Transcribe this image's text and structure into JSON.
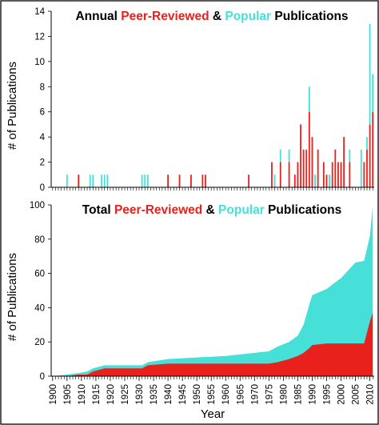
{
  "colors": {
    "peer": "#e8211d",
    "popular": "#46e0d8",
    "axis": "#000000"
  },
  "chart_data": [
    {
      "type": "bar",
      "title_parts": [
        "Annual ",
        "Peer-Reviewed",
        " & ",
        "Popular",
        " Publications"
      ],
      "title_colors": [
        "#000000",
        "#e8211d",
        "#000000",
        "#46e0d8",
        "#000000"
      ],
      "ylabel": "# of Publications",
      "ylim": [
        0,
        14
      ],
      "yticks": [
        "0",
        "2",
        "4",
        "6",
        "8",
        "10",
        "12",
        "14"
      ],
      "xlim": [
        1900,
        2011
      ],
      "stacked": true,
      "series": [
        {
          "name": "Peer-Reviewed",
          "x": [
            1909,
            1940,
            1944,
            1948,
            1952,
            1953,
            1968,
            1976,
            1979,
            1982,
            1984,
            1985,
            1986,
            1987,
            1988,
            1989,
            1990,
            1992,
            1994,
            1995,
            1997,
            1998,
            1999,
            2000,
            2001,
            2003,
            2008,
            2009,
            2010,
            2011
          ],
          "values": [
            1,
            1,
            1,
            1,
            1,
            1,
            1,
            2,
            2,
            2,
            1,
            2,
            5,
            3,
            3,
            6,
            4,
            3,
            2,
            1,
            2,
            3,
            2,
            2,
            4,
            2,
            2,
            3,
            5,
            6
          ]
        },
        {
          "name": "Popular",
          "x": [
            1905,
            1913,
            1914,
            1917,
            1918,
            1919,
            1931,
            1932,
            1933,
            1977,
            1979,
            1982,
            1989,
            1991,
            1996,
            2003,
            2007,
            2009,
            2010,
            2011
          ],
          "values": [
            1,
            1,
            1,
            1,
            1,
            1,
            1,
            1,
            1,
            1,
            1,
            1,
            2,
            1,
            1,
            1,
            3,
            1,
            8,
            3
          ]
        }
      ]
    },
    {
      "type": "area",
      "title_parts": [
        "Total ",
        "Peer-Reviewed",
        " & ",
        "Popular",
        " Publications"
      ],
      "title_colors": [
        "#000000",
        "#e8211d",
        "#000000",
        "#46e0d8",
        "#000000"
      ],
      "xlabel": "Year",
      "ylabel": "# of Publications",
      "ylim": [
        0,
        110
      ],
      "yticks": [
        "0",
        "20",
        "40",
        "60",
        "80",
        "100"
      ],
      "xlim": [
        1900,
        2011
      ],
      "xticks": [
        "1900",
        "1905",
        "1910",
        "1915",
        "1920",
        "1925",
        "1930",
        "1935",
        "1940",
        "1945",
        "1950",
        "1955",
        "1960",
        "1965",
        "1970",
        "1975",
        "1980",
        "1985",
        "1990",
        "1995",
        "2000",
        "2005",
        "2010"
      ],
      "stacked": true,
      "series": [
        {
          "name": "Peer-Reviewed",
          "x": [
            1900,
            1905,
            1909,
            1912,
            1914,
            1918,
            1931,
            1933,
            1940,
            1950,
            1960,
            1970,
            1975,
            1978,
            1982,
            1985,
            1987,
            1989,
            1990,
            1995,
            2000,
            2005,
            2008,
            2010,
            2011
          ],
          "values": [
            0,
            0,
            1,
            1,
            3,
            5,
            5,
            7,
            8,
            8,
            8,
            8,
            8,
            9,
            11,
            13,
            15,
            18,
            20,
            21,
            21,
            21,
            21,
            35,
            41
          ]
        },
        {
          "name": "Popular",
          "x": [
            1900,
            1905,
            1909,
            1912,
            1914,
            1918,
            1931,
            1933,
            1940,
            1950,
            1960,
            1970,
            1975,
            1978,
            1982,
            1985,
            1987,
            1989,
            1990,
            1995,
            2000,
            2005,
            2008,
            2010,
            2011
          ],
          "values": [
            0,
            1,
            1,
            2,
            2,
            2,
            2,
            2,
            3,
            4,
            5,
            7,
            8,
            10,
            11,
            13,
            18,
            28,
            32,
            35,
            42,
            52,
            53,
            55,
            68
          ]
        }
      ]
    }
  ]
}
